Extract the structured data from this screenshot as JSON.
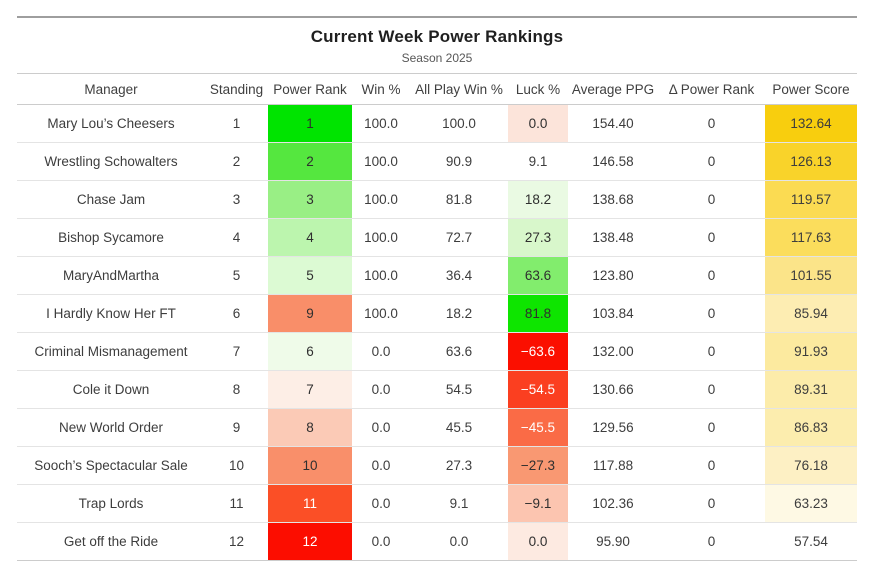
{
  "header": {
    "title": "Current Week Power Rankings",
    "subtitle": "Season 2025"
  },
  "table": {
    "columns": [
      {
        "key": "manager",
        "label": "Manager"
      },
      {
        "key": "standing",
        "label": "Standing"
      },
      {
        "key": "power_rank",
        "label": "Power Rank"
      },
      {
        "key": "win_pct",
        "label": "Win %"
      },
      {
        "key": "all_play_win_pct",
        "label": "All Play Win %"
      },
      {
        "key": "luck_pct",
        "label": "Luck %"
      },
      {
        "key": "avg_ppg",
        "label": "Average PPG"
      },
      {
        "key": "delta_power_rank",
        "label": "Δ Power Rank"
      },
      {
        "key": "power_score",
        "label": "Power Score"
      }
    ],
    "default_text_color": "#3d3d3d",
    "rows": [
      {
        "manager": "Mary Lou’s Cheesers",
        "standing": "1",
        "power_rank": "1",
        "win_pct": "100.0",
        "all_play_win_pct": "100.0",
        "luck_pct": "0.0",
        "avg_ppg": "154.40",
        "delta_power_rank": "0",
        "power_score": "132.64",
        "power_rank_bg": "#00e400",
        "power_rank_fg": "#2f2f2f",
        "luck_bg": "#fce4da",
        "luck_fg": "#2f2f2f",
        "power_score_bg": "#f8ce0e"
      },
      {
        "manager": "Wrestling Schowalters",
        "standing": "2",
        "power_rank": "2",
        "win_pct": "100.0",
        "all_play_win_pct": "90.9",
        "luck_pct": "9.1",
        "avg_ppg": "146.58",
        "delta_power_rank": "0",
        "power_score": "126.13",
        "power_rank_bg": "#55e73f",
        "power_rank_fg": "#2f2f2f",
        "luck_bg": "#ffffff",
        "luck_fg": "#3d3d3d",
        "power_score_bg": "#f9d32a"
      },
      {
        "manager": "Chase Jam",
        "standing": "3",
        "power_rank": "3",
        "win_pct": "100.0",
        "all_play_win_pct": "81.8",
        "luck_pct": "18.2",
        "avg_ppg": "138.68",
        "delta_power_rank": "0",
        "power_score": "119.57",
        "power_rank_bg": "#99ef85",
        "power_rank_fg": "#2f2f2f",
        "luck_bg": "#eafae3",
        "luck_fg": "#2f2f2f",
        "power_score_bg": "#fbdb52"
      },
      {
        "manager": "Bishop Sycamore",
        "standing": "4",
        "power_rank": "4",
        "win_pct": "100.0",
        "all_play_win_pct": "72.7",
        "luck_pct": "27.3",
        "avg_ppg": "138.48",
        "delta_power_rank": "0",
        "power_score": "117.63",
        "power_rank_bg": "#bcf5ae",
        "power_rank_fg": "#2f2f2f",
        "luck_bg": "#d8f7cb",
        "luck_fg": "#2f2f2f",
        "power_score_bg": "#fbdd5c"
      },
      {
        "manager": "MaryAndMartha",
        "standing": "5",
        "power_rank": "5",
        "win_pct": "100.0",
        "all_play_win_pct": "36.4",
        "luck_pct": "63.6",
        "avg_ppg": "123.80",
        "delta_power_rank": "0",
        "power_score": "101.55",
        "power_rank_bg": "#dcfad3",
        "power_rank_fg": "#2f2f2f",
        "luck_bg": "#82ed6d",
        "luck_fg": "#2f2f2f",
        "power_score_bg": "#fbe489"
      },
      {
        "manager": "I Hardly Know Her FT",
        "standing": "6",
        "power_rank": "9",
        "win_pct": "100.0",
        "all_play_win_pct": "18.2",
        "luck_pct": "81.8",
        "avg_ppg": "103.84",
        "delta_power_rank": "0",
        "power_score": "85.94",
        "power_rank_bg": "#f98e69",
        "power_rank_fg": "#2f2f2f",
        "luck_bg": "#0ee500",
        "luck_fg": "#2f2f2f",
        "power_score_bg": "#fdedb2"
      },
      {
        "manager": "Criminal Mismanagement",
        "standing": "7",
        "power_rank": "6",
        "win_pct": "0.0",
        "all_play_win_pct": "63.6",
        "luck_pct": "−63.6",
        "avg_ppg": "132.00",
        "delta_power_rank": "0",
        "power_score": "91.93",
        "power_rank_bg": "#effbe9",
        "power_rank_fg": "#2f2f2f",
        "luck_bg": "#fb0f00",
        "luck_fg": "#ffffff",
        "power_score_bg": "#fcea9f"
      },
      {
        "manager": "Cole it Down",
        "standing": "8",
        "power_rank": "7",
        "win_pct": "0.0",
        "all_play_win_pct": "54.5",
        "luck_pct": "−54.5",
        "avg_ppg": "130.66",
        "delta_power_rank": "0",
        "power_score": "89.31",
        "power_rank_bg": "#fdeee6",
        "power_rank_fg": "#2f2f2f",
        "luck_bg": "#fb3f20",
        "luck_fg": "#ffffff",
        "power_score_bg": "#fcecaa"
      },
      {
        "manager": "New World Order",
        "standing": "9",
        "power_rank": "8",
        "win_pct": "0.0",
        "all_play_win_pct": "45.5",
        "luck_pct": "−45.5",
        "avg_ppg": "129.56",
        "delta_power_rank": "0",
        "power_score": "86.83",
        "power_rank_bg": "#fbcab6",
        "power_rank_fg": "#2f2f2f",
        "luck_bg": "#fa6b46",
        "luck_fg": "#ffffff",
        "power_score_bg": "#fcedae"
      },
      {
        "manager": "Sooch’s Spectacular Sale",
        "standing": "10",
        "power_rank": "10",
        "win_pct": "0.0",
        "all_play_win_pct": "27.3",
        "luck_pct": "−27.3",
        "avg_ppg": "117.88",
        "delta_power_rank": "0",
        "power_score": "76.18",
        "power_rank_bg": "#f98f6a",
        "power_rank_fg": "#2f2f2f",
        "luck_bg": "#f99872",
        "luck_fg": "#2f2f2f",
        "power_score_bg": "#fdf0c4"
      },
      {
        "manager": "Trap Lords",
        "standing": "11",
        "power_rank": "11",
        "win_pct": "0.0",
        "all_play_win_pct": "9.1",
        "luck_pct": "−9.1",
        "avg_ppg": "102.36",
        "delta_power_rank": "0",
        "power_score": "63.23",
        "power_rank_bg": "#fb4f26",
        "power_rank_fg": "#ffffff",
        "luck_bg": "#fcc5b0",
        "luck_fg": "#2f2f2f",
        "power_score_bg": "#fef9e4"
      },
      {
        "manager": "Get off the Ride",
        "standing": "12",
        "power_rank": "12",
        "win_pct": "0.0",
        "all_play_win_pct": "0.0",
        "luck_pct": "0.0",
        "avg_ppg": "95.90",
        "delta_power_rank": "0",
        "power_score": "57.54",
        "power_rank_bg": "#fc0d00",
        "power_rank_fg": "#ffffff",
        "luck_bg": "#fdeae1",
        "luck_fg": "#2f2f2f",
        "power_score_bg": "#ffffff"
      }
    ]
  }
}
